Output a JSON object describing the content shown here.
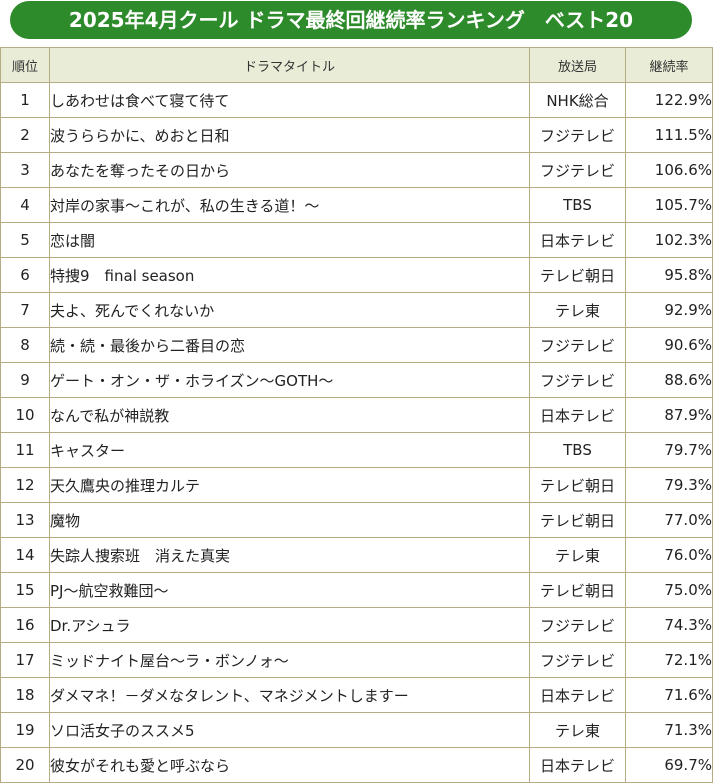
{
  "title": "2025年4月クール ドラマ最終回継続率ランキング　ベスト20",
  "headers": {
    "rank": "順位",
    "title": "ドラマタイトル",
    "station": "放送局",
    "rate": "継続率"
  },
  "colors": {
    "title_bar": "#2e8b2b",
    "header_bg": "#e9ecd6",
    "border": "#b5ac84"
  },
  "rows": [
    {
      "rank": "1",
      "title": "しあわせは食べて寝て待て",
      "station": "NHK総合",
      "rate": "122.9%"
    },
    {
      "rank": "2",
      "title": "波うららかに、めおと日和",
      "station": "フジテレビ",
      "rate": "111.5%"
    },
    {
      "rank": "3",
      "title": "あなたを奪ったその日から",
      "station": "フジテレビ",
      "rate": "106.6%"
    },
    {
      "rank": "4",
      "title": "対岸の家事～これが、私の生きる道！～",
      "station": "TBS",
      "rate": "105.7%"
    },
    {
      "rank": "5",
      "title": "恋は闇",
      "station": "日本テレビ",
      "rate": "102.3%"
    },
    {
      "rank": "6",
      "title": "特捜9　final season",
      "station": "テレビ朝日",
      "rate": "95.8%"
    },
    {
      "rank": "7",
      "title": "夫よ、死んでくれないか",
      "station": "テレ東",
      "rate": "92.9%"
    },
    {
      "rank": "8",
      "title": "続・続・最後から二番目の恋",
      "station": "フジテレビ",
      "rate": "90.6%"
    },
    {
      "rank": "9",
      "title": "ゲート・オン・ザ・ホライズン～GOTH～",
      "station": "フジテレビ",
      "rate": "88.6%"
    },
    {
      "rank": "10",
      "title": "なんで私が神説教",
      "station": "日本テレビ",
      "rate": "87.9%"
    },
    {
      "rank": "11",
      "title": "キャスター",
      "station": "TBS",
      "rate": "79.7%"
    },
    {
      "rank": "12",
      "title": "天久鷹央の推理カルテ",
      "station": "テレビ朝日",
      "rate": "79.3%"
    },
    {
      "rank": "13",
      "title": "魔物",
      "station": "テレビ朝日",
      "rate": "77.0%"
    },
    {
      "rank": "14",
      "title": "失踪人捜索班　消えた真実",
      "station": "テレ東",
      "rate": "76.0%"
    },
    {
      "rank": "15",
      "title": "PJ～航空救難団～",
      "station": "テレビ朝日",
      "rate": "75.0%"
    },
    {
      "rank": "16",
      "title": "Dr.アシュラ",
      "station": "フジテレビ",
      "rate": "74.3%"
    },
    {
      "rank": "17",
      "title": "ミッドナイト屋台～ラ・ボンノォ～",
      "station": "フジテレビ",
      "rate": "72.1%"
    },
    {
      "rank": "18",
      "title": "ダメマネ！－ダメなタレント、マネジメントしますー",
      "station": "日本テレビ",
      "rate": "71.6%"
    },
    {
      "rank": "19",
      "title": "ソロ活女子のススメ5",
      "station": "テレ東",
      "rate": "71.3%"
    },
    {
      "rank": "20",
      "title": "彼女がそれも愛と呼ぶなら",
      "station": "日本テレビ",
      "rate": "69.7%"
    }
  ]
}
